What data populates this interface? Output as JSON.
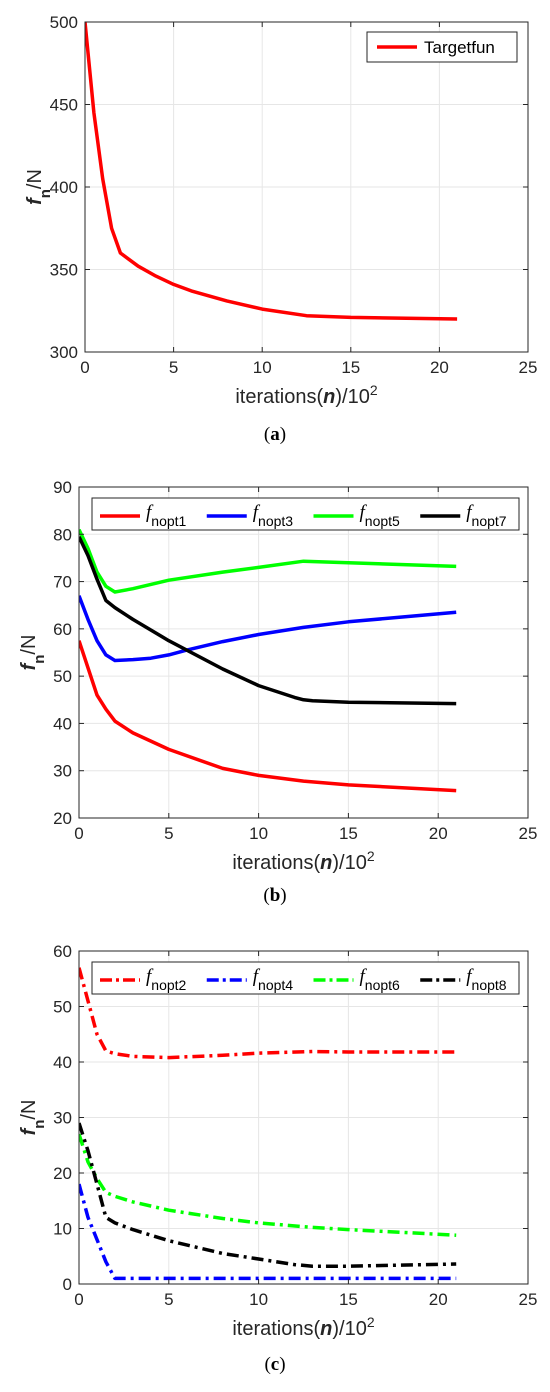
{
  "chart_data": [
    {
      "id": "a",
      "type": "line",
      "caption_open": "(",
      "caption": "a",
      "caption_close": ")",
      "xlabel_pre": "iterations(",
      "xlabel_var": "n",
      "xlabel_post": ")/10",
      "xlabel_exp": "2",
      "ylabel_var": "f",
      "ylabel_sub": "n",
      "ylabel_post": "/N",
      "xlim": [
        0,
        25
      ],
      "ylim": [
        300,
        500
      ],
      "xticks": [
        0,
        5,
        10,
        15,
        20,
        25
      ],
      "yticks": [
        300,
        350,
        400,
        450,
        500
      ],
      "grid": true,
      "legend_position": "top-right",
      "legend_columns": 1,
      "series": [
        {
          "name": "Targetfun",
          "color": "#ff0000",
          "dash": "solid",
          "x": [
            0,
            0.5,
            1,
            1.5,
            2,
            3,
            4,
            5,
            6,
            8,
            10,
            12.5,
            15,
            21
          ],
          "y": [
            500,
            445,
            405,
            375,
            360,
            352,
            346,
            341,
            337,
            331,
            326,
            322,
            321,
            320
          ]
        }
      ]
    },
    {
      "id": "b",
      "type": "line",
      "caption_open": "(",
      "caption": "b",
      "caption_close": ")",
      "xlabel_pre": "iterations(",
      "xlabel_var": "n",
      "xlabel_post": ")/10",
      "xlabel_exp": "2",
      "ylabel_var": "f",
      "ylabel_sub": "n",
      "ylabel_post": "/N",
      "xlim": [
        0,
        25
      ],
      "ylim": [
        20,
        90
      ],
      "xticks": [
        0,
        5,
        10,
        15,
        20,
        25
      ],
      "yticks": [
        20,
        30,
        40,
        50,
        60,
        70,
        80,
        90
      ],
      "grid": true,
      "legend_position": "top",
      "legend_columns": 4,
      "series": [
        {
          "name_main": "f",
          "name_sub": "nopt1",
          "color": "#ff0000",
          "dash": "solid",
          "x": [
            0,
            1,
            1.5,
            2,
            3,
            5,
            8,
            10,
            12.5,
            15,
            21
          ],
          "y": [
            57.5,
            46,
            43,
            40.5,
            38,
            34.5,
            30.5,
            29,
            27.8,
            27,
            25.8
          ]
        },
        {
          "name_main": "f",
          "name_sub": "nopt3",
          "color": "#0000ff",
          "dash": "solid",
          "x": [
            0,
            0.5,
            1,
            1.5,
            2,
            3,
            4,
            5,
            6,
            8,
            10,
            12.5,
            15,
            18,
            21
          ],
          "y": [
            67,
            62,
            57.5,
            54.5,
            53.3,
            53.5,
            53.8,
            54.5,
            55.5,
            57.3,
            58.8,
            60.3,
            61.5,
            62.5,
            63.5
          ]
        },
        {
          "name_main": "f",
          "name_sub": "nopt5",
          "color": "#00ff00",
          "dash": "solid",
          "x": [
            0,
            0.5,
            1,
            1.5,
            2,
            3,
            5,
            8,
            10,
            12.5,
            15,
            21
          ],
          "y": [
            81,
            77,
            72,
            69,
            67.8,
            68.5,
            70.3,
            72,
            73,
            74.3,
            74,
            73.2
          ]
        },
        {
          "name_main": "f",
          "name_sub": "nopt7",
          "color": "#000000",
          "dash": "solid",
          "x": [
            0,
            0.5,
            1,
            1.5,
            2,
            3,
            5,
            8,
            10,
            12,
            12.5,
            13,
            15,
            21
          ],
          "y": [
            79.5,
            75.5,
            70.5,
            66,
            64.5,
            62,
            57.5,
            51.5,
            48,
            45.5,
            45,
            44.8,
            44.5,
            44.2
          ]
        }
      ]
    },
    {
      "id": "c",
      "type": "line",
      "caption_open": "(",
      "caption": "c",
      "caption_close": ")",
      "xlabel_pre": "iterations(",
      "xlabel_var": "n",
      "xlabel_post": ")/10",
      "xlabel_exp": "2",
      "ylabel_var": "f",
      "ylabel_sub": "n",
      "ylabel_post": "/N",
      "xlim": [
        0,
        25
      ],
      "ylim": [
        0,
        60
      ],
      "xticks": [
        0,
        5,
        10,
        15,
        20,
        25
      ],
      "yticks": [
        0,
        10,
        20,
        30,
        40,
        50,
        60
      ],
      "grid": true,
      "legend_position": "top",
      "legend_columns": 4,
      "series": [
        {
          "name_main": "f",
          "name_sub": "nopt2",
          "color": "#ff0000",
          "dash": "dashdot",
          "x": [
            0,
            0.5,
            1,
            1.5,
            2,
            3,
            5,
            8,
            10,
            13,
            15,
            21
          ],
          "y": [
            57,
            51,
            45,
            42,
            41.5,
            41,
            40.8,
            41.2,
            41.6,
            41.9,
            41.8,
            41.8
          ]
        },
        {
          "name_main": "f",
          "name_sub": "nopt4",
          "color": "#0000ff",
          "dash": "dashdot",
          "x": [
            0,
            0.5,
            1,
            1.5,
            2,
            3,
            5,
            10,
            15,
            21
          ],
          "y": [
            18,
            12,
            8,
            4,
            1,
            1,
            1,
            1,
            1,
            1
          ]
        },
        {
          "name_main": "f",
          "name_sub": "nopt6",
          "color": "#00ff00",
          "dash": "dashdot",
          "x": [
            0,
            0.5,
            1,
            1.5,
            2,
            3,
            5,
            8,
            10,
            13,
            15,
            21
          ],
          "y": [
            27,
            22,
            19,
            16.5,
            15.8,
            14.8,
            13.3,
            11.8,
            11,
            10.2,
            9.8,
            8.8
          ]
        },
        {
          "name_main": "f",
          "name_sub": "nopt8",
          "color": "#000000",
          "dash": "dashdot",
          "x": [
            0,
            0.5,
            1,
            1.5,
            2,
            3,
            5,
            8,
            10,
            12,
            13,
            15,
            21
          ],
          "y": [
            29,
            24,
            18,
            12,
            11,
            9.8,
            7.8,
            5.5,
            4.5,
            3.5,
            3.2,
            3.2,
            3.6
          ]
        }
      ]
    }
  ]
}
